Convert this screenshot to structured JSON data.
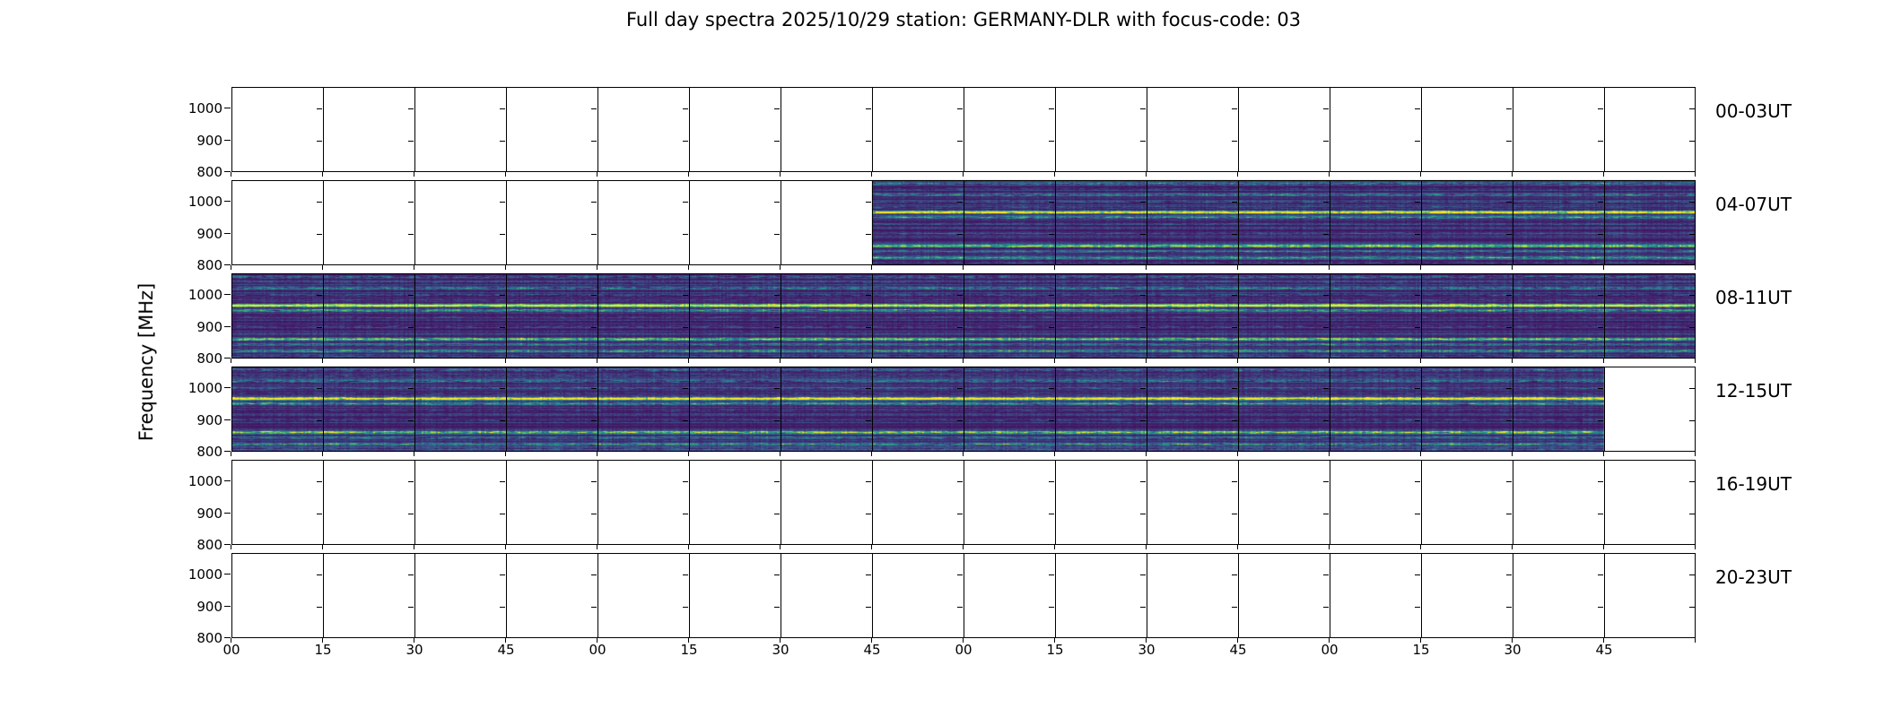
{
  "chart_data": {
    "type": "heatmap",
    "title": "Full day spectra 2025/10/29 station: GERMANY-DLR with focus-code: 03",
    "date": "2025/10/29",
    "station": "GERMANY-DLR",
    "focus_code": "03",
    "ylabel": "Frequency [MHz]",
    "xlabel": "",
    "ylim": [
      800,
      1068
    ],
    "y_ticks_mhz": [
      1000,
      900,
      800
    ],
    "y_tick_labels": [
      "1000",
      "900",
      "800"
    ],
    "x_tick_labels": [
      "00",
      "15",
      "30",
      "45",
      "00",
      "15",
      "30",
      "45",
      "00",
      "15",
      "30",
      "45",
      "00",
      "15",
      "30",
      "45"
    ],
    "cells_per_row": 16,
    "minutes_per_cell": 15,
    "legend_position": "none",
    "grid": "panel-dividers",
    "rows": [
      {
        "label": "00-03UT",
        "filled_ranges": []
      },
      {
        "label": "04-07UT",
        "filled_ranges": [
          [
            7,
            16
          ]
        ]
      },
      {
        "label": "08-11UT",
        "filled_ranges": [
          [
            0,
            16
          ]
        ]
      },
      {
        "label": "12-15UT",
        "filled_ranges": [
          [
            0,
            15
          ]
        ]
      },
      {
        "label": "16-19UT",
        "filled_ranges": []
      },
      {
        "label": "20-23UT",
        "filled_ranges": []
      }
    ],
    "colormap": {
      "name": "viridis",
      "stops": [
        "#440154",
        "#3b528b",
        "#21918c",
        "#5ec962",
        "#fde725"
      ],
      "background_value_range": [
        0.05,
        0.25
      ]
    },
    "emission_bands": [
      {
        "freq_mhz": 1057,
        "strength": 0.5,
        "coverage": 0.45
      },
      {
        "freq_mhz": 1040,
        "strength": 0.28,
        "coverage": 0.3
      },
      {
        "freq_mhz": 1022,
        "strength": 0.55,
        "coverage": 0.5
      },
      {
        "freq_mhz": 1000,
        "strength": 0.35,
        "coverage": 0.4
      },
      {
        "freq_mhz": 983,
        "strength": 0.28,
        "coverage": 0.3
      },
      {
        "freq_mhz": 967,
        "strength": 1.0,
        "coverage": 0.95
      },
      {
        "freq_mhz": 951,
        "strength": 0.6,
        "coverage": 0.65
      },
      {
        "freq_mhz": 930,
        "strength": 0.25,
        "coverage": 0.3
      },
      {
        "freq_mhz": 900,
        "strength": 0.3,
        "coverage": 0.35
      },
      {
        "freq_mhz": 861,
        "strength": 0.7,
        "coverage": 0.8
      },
      {
        "freq_mhz": 844,
        "strength": 0.45,
        "coverage": 0.55
      },
      {
        "freq_mhz": 824,
        "strength": 0.55,
        "coverage": 0.6
      },
      {
        "freq_mhz": 808,
        "strength": 0.3,
        "coverage": 0.4
      }
    ],
    "seed": 1337
  }
}
